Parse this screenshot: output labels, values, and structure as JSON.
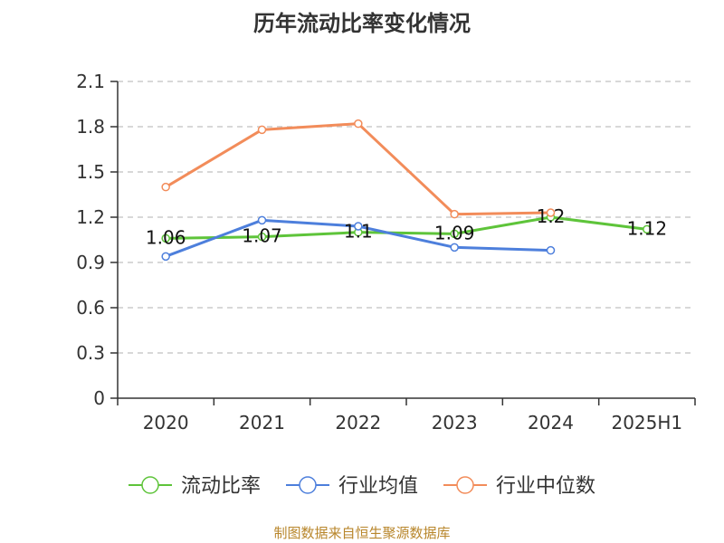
{
  "title": "历年流动比率变化情况",
  "source": "制图数据来自恒生聚源数据库",
  "colors": {
    "current_ratio": "#5ec43a",
    "industry_mean": "#4d7fdc",
    "industry_median": "#f28c5a",
    "grid": "#cccccc",
    "axis": "#333333"
  },
  "chart_data": {
    "type": "line",
    "categories": [
      "2020",
      "2021",
      "2022",
      "2023",
      "2024",
      "2025H1"
    ],
    "ylim": [
      0,
      2.1
    ],
    "yticks": [
      "0",
      "0.3",
      "0.6",
      "0.9",
      "1.2",
      "1.5",
      "1.8",
      "2.1"
    ],
    "grid": true,
    "legend_position": "bottom",
    "series": [
      {
        "key": "current_ratio",
        "name": "流动比率",
        "values": [
          1.06,
          1.07,
          1.1,
          1.09,
          1.2,
          1.12
        ],
        "labels": [
          "1.06",
          "1.07",
          "1.1",
          "1.09",
          "1.2",
          "1.12"
        ]
      },
      {
        "key": "industry_mean",
        "name": "行业均值",
        "values": [
          0.94,
          1.18,
          1.14,
          1.0,
          0.98,
          null
        ]
      },
      {
        "key": "industry_median",
        "name": "行业中位数",
        "values": [
          1.4,
          1.78,
          1.82,
          1.22,
          1.23,
          null
        ]
      }
    ]
  }
}
